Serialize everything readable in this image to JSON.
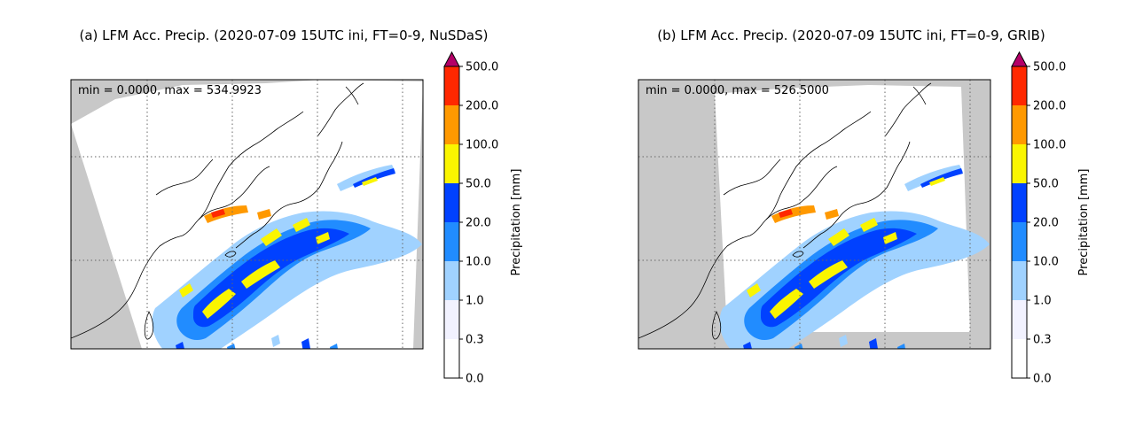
{
  "figure": {
    "panels": [
      {
        "title": "(a) LFM Acc. Precip. (2020-07-09 15UTC ini, FT=0-9, NuSDaS)",
        "annotation": "min = 0.0000, max = 534.9923"
      },
      {
        "title": "(b) LFM Acc. Precip. (2020-07-09 15UTC ini, FT=0-9, GRIB)",
        "annotation": "min = 0.0000, max = 526.5000"
      }
    ],
    "colorbar": {
      "label": "Precipitation [mm]",
      "ticks": [
        "0.0",
        "0.3",
        "1.0",
        "10.0",
        "20.0",
        "50.0",
        "100.0",
        "200.0",
        "500.0"
      ],
      "colors": [
        "#ffffff",
        "#f2f2ff",
        "#a0d2ff",
        "#218cff",
        "#0041ff",
        "#faf500",
        "#ff9900",
        "#ff2800",
        "#b40068"
      ]
    }
  },
  "chart_data": [
    {
      "type": "heatmap",
      "title": "(a) LFM Acc. Precip. (2020-07-09 15UTC ini, FT=0-9, NuSDaS)",
      "variable": "Accumulated precipitation",
      "units": "mm",
      "stats": {
        "min": 0.0,
        "max": 534.9923
      },
      "levels": [
        0.0,
        0.3,
        1.0,
        10.0,
        20.0,
        50.0,
        100.0,
        200.0,
        500.0
      ],
      "extend": "max",
      "colorbar_label": "Precipitation [mm]"
    },
    {
      "type": "heatmap",
      "title": "(b) LFM Acc. Precip. (2020-07-09 15UTC ini, FT=0-9, GRIB)",
      "variable": "Accumulated precipitation",
      "units": "mm",
      "stats": {
        "min": 0.0,
        "max": 526.5
      },
      "levels": [
        0.0,
        0.3,
        1.0,
        10.0,
        20.0,
        50.0,
        100.0,
        200.0,
        500.0
      ],
      "extend": "max",
      "colorbar_label": "Precipitation [mm]"
    }
  ]
}
